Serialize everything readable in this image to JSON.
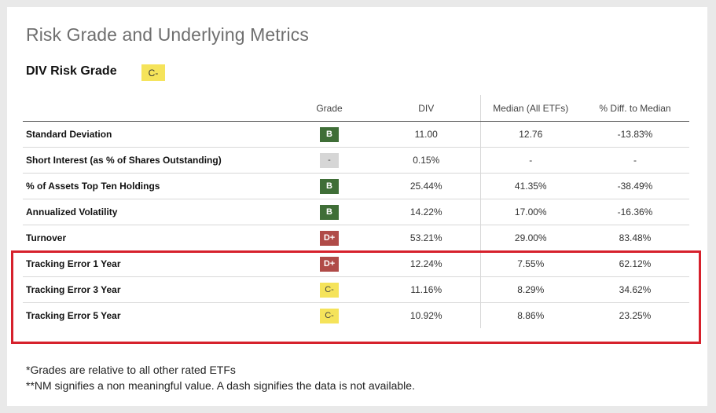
{
  "title": "Risk Grade and Underlying Metrics",
  "risk_grade": {
    "label": "DIV Risk Grade",
    "value": "C-",
    "color": "#f5e35a"
  },
  "columns": [
    "",
    "Grade",
    "DIV",
    "Median (All ETFs)",
    "% Diff. to Median"
  ],
  "grade_colors": {
    "B": "#3f6e37",
    "-": "#d6d6d6",
    "D+": "#b04b48",
    "C-": "#f5e35a"
  },
  "rows": [
    {
      "metric": "Standard Deviation",
      "grade": "B",
      "div": "11.00",
      "median": "12.76",
      "diff": "-13.83%"
    },
    {
      "metric": "Short Interest (as % of Shares Outstanding)",
      "grade": "-",
      "div": "0.15%",
      "median": "-",
      "diff": "-"
    },
    {
      "metric": "% of Assets Top Ten Holdings",
      "grade": "B",
      "div": "25.44%",
      "median": "41.35%",
      "diff": "-38.49%"
    },
    {
      "metric": "Annualized Volatility",
      "grade": "B",
      "div": "14.22%",
      "median": "17.00%",
      "diff": "-16.36%"
    },
    {
      "metric": "Turnover",
      "grade": "D+",
      "div": "53.21%",
      "median": "29.00%",
      "diff": "83.48%"
    },
    {
      "metric": "Tracking Error 1 Year",
      "grade": "D+",
      "div": "12.24%",
      "median": "7.55%",
      "diff": "62.12%"
    },
    {
      "metric": "Tracking Error 3 Year",
      "grade": "C-",
      "div": "11.16%",
      "median": "8.29%",
      "diff": "34.62%"
    },
    {
      "metric": "Tracking Error 5 Year",
      "grade": "C-",
      "div": "10.92%",
      "median": "8.86%",
      "diff": "23.25%"
    }
  ],
  "notes": [
    "*Grades are relative to all other rated ETFs",
    "**NM signifies a non meaningful value. A dash signifies the data is not available."
  ]
}
